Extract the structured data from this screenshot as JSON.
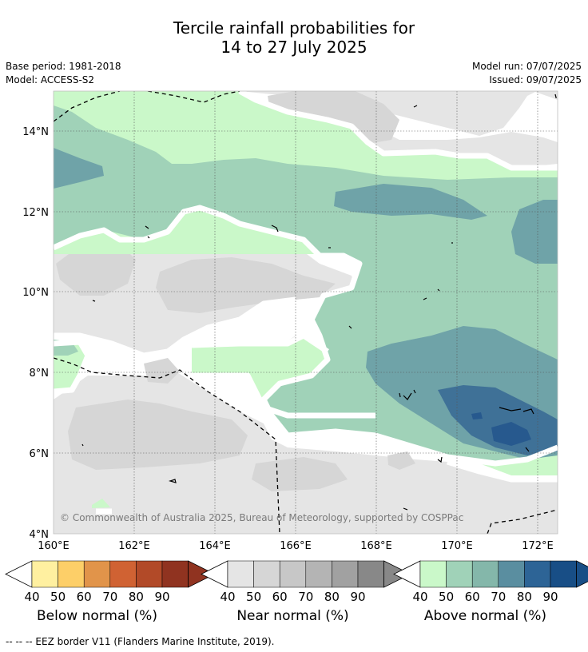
{
  "header": {
    "title_line1": "Tercile rainfall probabilities for",
    "title_line2": "14 to 27 July 2025",
    "base_period": "Base period: 1981-2018",
    "model": "Model: ACCESS-S2",
    "model_run": "Model run: 07/07/2025",
    "issued": "Issued: 09/07/2025"
  },
  "copyright": "© Commonwealth of Australia 2025, Bureau of Meteorology, supported by COSPPac",
  "footnote": "-- -- -- EEZ border V11 (Flanders Marine Institute, 2019).",
  "chart_data": {
    "type": "heatmap",
    "x_axis": {
      "range": [
        160,
        172.5
      ],
      "ticks": [
        "160°E",
        "162°E",
        "164°E",
        "166°E",
        "168°E",
        "170°E",
        "172°E"
      ]
    },
    "y_axis": {
      "range": [
        4,
        15
      ],
      "ticks": [
        "4°N",
        "6°N",
        "8°N",
        "10°N",
        "12°N",
        "14°N"
      ]
    },
    "grid": true,
    "colorbars": [
      {
        "name": "below",
        "label": "Below normal (%)",
        "ticks": [
          "40",
          "50",
          "60",
          "70",
          "80",
          "90"
        ],
        "colors": [
          "#fff0a0",
          "#fdcf68",
          "#e1944a",
          "#d06233",
          "#b24a28",
          "#903320"
        ]
      },
      {
        "name": "near",
        "label": "Near normal (%)",
        "ticks": [
          "40",
          "50",
          "60",
          "70",
          "80",
          "90"
        ],
        "colors": [
          "#e5e5e5",
          "#d6d6d6",
          "#c7c7c7",
          "#b4b4b4",
          "#a1a1a1",
          "#888888"
        ]
      },
      {
        "name": "above",
        "label": "Above normal (%)",
        "ticks": [
          "40",
          "50",
          "60",
          "70",
          "80",
          "90"
        ],
        "colors": [
          "#caf8c9",
          "#a0d2b8",
          "#84b7aa",
          "#5a8ea0",
          "#2d6496",
          "#184e86"
        ]
      }
    ]
  }
}
